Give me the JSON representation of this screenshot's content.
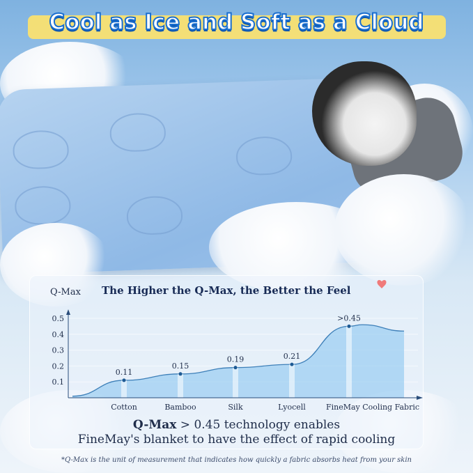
{
  "headline": "Cool as Ice and Soft as a Cloud",
  "chart_data": {
    "type": "area",
    "title": "The Higher the Q-Max, the Better the Feel",
    "ylabel": "Q-Max",
    "xlabel": "",
    "categories": [
      "Cotton",
      "Bamboo",
      "Silk",
      "Lyocell",
      "FineMay Cooling Fabric"
    ],
    "values": [
      0.11,
      0.15,
      0.19,
      0.21,
      0.45
    ],
    "data_labels": [
      "0.11",
      "0.15",
      "0.19",
      "0.21",
      ">0.45"
    ],
    "yticks": [
      "0.1",
      "0.2",
      "0.3",
      "0.4",
      "0.5"
    ],
    "ylim": [
      0,
      0.5
    ],
    "grid": true,
    "colors": {
      "line": "#3d7fb8",
      "fill": "#8cc6f0",
      "text": "#1f2d4a"
    }
  },
  "description": {
    "line1_bold": "Q-Max",
    "line1_rest": " > 0.45 technology enables",
    "line2": "FineMay's blanket to have the effect of rapid cooling"
  },
  "footnote": "*Q-Max is the unit of measurement that indicates how quickly a fabric absorbs heat from your skin"
}
